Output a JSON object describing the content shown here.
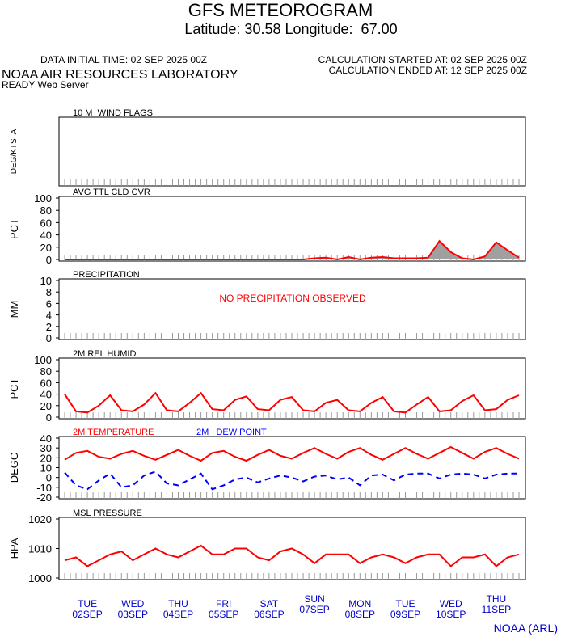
{
  "header": {
    "title": "GFS METEOROGRAM",
    "subtitle": "Latitude: 30.58 Longitude:  67.00",
    "initial_time": "DATA INITIAL TIME: 02 SEP 2025 00Z",
    "calc_started": "CALCULATION STARTED AT: 02 SEP 2025 00Z",
    "calc_ended": "CALCULATION ENDED AT: 12 SEP 2025 00Z",
    "org": "NOAA AIR RESOURCES LABORATORY",
    "server": "READY Web Server",
    "footer": "NOAA (ARL)"
  },
  "days": [
    {
      "day": "TUE",
      "date": "02SEP"
    },
    {
      "day": "WED",
      "date": "03SEP"
    },
    {
      "day": "THU",
      "date": "04SEP"
    },
    {
      "day": "FRI",
      "date": "05SEP"
    },
    {
      "day": "SAT",
      "date": "06SEP"
    },
    {
      "day": "SUN",
      "date": "07SEP"
    },
    {
      "day": "MON",
      "date": "08SEP"
    },
    {
      "day": "TUE",
      "date": "09SEP"
    },
    {
      "day": "WED",
      "date": "10SEP"
    },
    {
      "day": "THU",
      "date": "11SEP"
    }
  ],
  "chart_data": [
    {
      "type": "wind",
      "title": "10 M  WIND FLAGS",
      "ylabel": "DEG/KTS  A"
    },
    {
      "type": "area",
      "title": "AVG TTL CLD CVR",
      "ylabel": "PCT",
      "ylim": [
        0,
        100
      ],
      "yticks": [
        0,
        20,
        40,
        60,
        80,
        100
      ],
      "xlim": [
        0,
        240
      ],
      "x": [
        0,
        6,
        12,
        18,
        24,
        30,
        36,
        42,
        48,
        54,
        60,
        66,
        72,
        78,
        84,
        90,
        96,
        102,
        108,
        114,
        120,
        126,
        132,
        138,
        144,
        150,
        156,
        162,
        168,
        174,
        180,
        186,
        192,
        198,
        204,
        210,
        216,
        222,
        228,
        234,
        240
      ],
      "series": [
        {
          "color": "#ff0000",
          "fill": "#a0a0a0",
          "values": [
            0,
            0,
            0,
            0,
            0,
            0,
            0,
            0,
            0,
            0,
            0,
            0,
            0,
            0,
            0,
            0,
            0,
            0,
            0,
            0,
            0,
            0,
            2,
            3,
            0,
            4,
            0,
            3,
            4,
            2,
            2,
            2,
            3,
            30,
            12,
            2,
            0,
            5,
            28,
            15,
            3
          ]
        }
      ]
    },
    {
      "type": "text",
      "title": "PRECIPITATION",
      "ylabel": "MM",
      "ylim": [
        0,
        10
      ],
      "yticks": [
        0,
        2,
        4,
        6,
        8,
        10
      ],
      "annotation": "NO PRECIPITATION OBSERVED"
    },
    {
      "type": "line",
      "title": "2M REL HUMID",
      "ylabel": "PCT",
      "ylim": [
        0,
        100
      ],
      "yticks": [
        0,
        20,
        40,
        60,
        80,
        100
      ],
      "xlim": [
        0,
        240
      ],
      "x": [
        0,
        6,
        12,
        18,
        24,
        30,
        36,
        42,
        48,
        54,
        60,
        66,
        72,
        78,
        84,
        90,
        96,
        102,
        108,
        114,
        120,
        126,
        132,
        138,
        144,
        150,
        156,
        162,
        168,
        174,
        180,
        186,
        192,
        198,
        204,
        210,
        216,
        222,
        228,
        234,
        240
      ],
      "series": [
        {
          "color": "#ff0000",
          "values": [
            40,
            10,
            8,
            20,
            38,
            12,
            10,
            22,
            42,
            12,
            10,
            25,
            42,
            14,
            12,
            30,
            36,
            14,
            12,
            30,
            35,
            12,
            10,
            25,
            30,
            12,
            10,
            25,
            35,
            10,
            8,
            22,
            35,
            10,
            12,
            28,
            38,
            12,
            14,
            30,
            38
          ]
        }
      ]
    },
    {
      "type": "line",
      "title": "",
      "ylabel": "DEGC",
      "ylim": [
        -20,
        40
      ],
      "yticks": [
        -20,
        -10,
        0,
        10,
        20,
        30,
        40
      ],
      "xlim": [
        0,
        240
      ],
      "x": [
        0,
        6,
        12,
        18,
        24,
        30,
        36,
        42,
        48,
        54,
        60,
        66,
        72,
        78,
        84,
        90,
        96,
        102,
        108,
        114,
        120,
        126,
        132,
        138,
        144,
        150,
        156,
        162,
        168,
        174,
        180,
        186,
        192,
        198,
        204,
        210,
        216,
        222,
        228,
        234,
        240
      ],
      "series": [
        {
          "name": "2M TEMPERATURE",
          "color": "#ff0000",
          "values": [
            18,
            25,
            27,
            21,
            19,
            24,
            27,
            22,
            18,
            23,
            28,
            22,
            17,
            25,
            27,
            21,
            17,
            23,
            28,
            22,
            19,
            25,
            30,
            24,
            19,
            26,
            30,
            23,
            18,
            24,
            30,
            24,
            19,
            25,
            31,
            25,
            19,
            26,
            30,
            24,
            19
          ]
        },
        {
          "name": "2M   DEW POINT",
          "color": "#0000ff",
          "dashed": true,
          "values": [
            5,
            -8,
            -12,
            -3,
            4,
            -10,
            -8,
            2,
            6,
            -6,
            -8,
            -2,
            4,
            -12,
            -8,
            -2,
            0,
            -5,
            -1,
            2,
            0,
            -4,
            1,
            2,
            -2,
            0,
            -8,
            2,
            3,
            -3,
            3,
            4,
            4,
            -1,
            3,
            4,
            3,
            -1,
            3,
            4,
            4
          ]
        }
      ]
    },
    {
      "type": "line",
      "title": "MSL PRESSURE",
      "ylabel": "HPA",
      "ylim": [
        1000,
        1020
      ],
      "yticks": [
        1000,
        1010,
        1020
      ],
      "xlim": [
        0,
        240
      ],
      "x": [
        0,
        6,
        12,
        18,
        24,
        30,
        36,
        42,
        48,
        54,
        60,
        66,
        72,
        78,
        84,
        90,
        96,
        102,
        108,
        114,
        120,
        126,
        132,
        138,
        144,
        150,
        156,
        162,
        168,
        174,
        180,
        186,
        192,
        198,
        204,
        210,
        216,
        222,
        228,
        234,
        240
      ],
      "series": [
        {
          "color": "#ff0000",
          "values": [
            1006,
            1007,
            1004,
            1006,
            1008,
            1009,
            1006,
            1008,
            1010,
            1008,
            1007,
            1009,
            1011,
            1008,
            1008,
            1010,
            1010,
            1007,
            1006,
            1009,
            1010,
            1008,
            1005,
            1008,
            1008,
            1008,
            1005,
            1007,
            1008,
            1007,
            1005,
            1007,
            1008,
            1008,
            1004,
            1007,
            1007,
            1008,
            1004,
            1007,
            1008
          ]
        }
      ]
    }
  ]
}
